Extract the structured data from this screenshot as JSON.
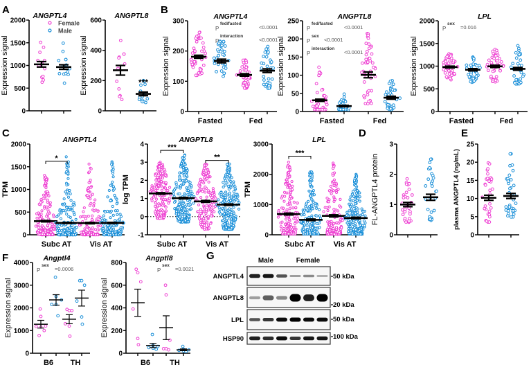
{
  "colors": {
    "female": "#ee3fd2",
    "male": "#1a8fd8",
    "axis": "#000000",
    "annotation": "#555555"
  },
  "legend": {
    "female": "Female",
    "male": "Male"
  },
  "panel_letters": [
    "A",
    "B",
    "C",
    "D",
    "E",
    "F",
    "G"
  ],
  "chart_data": [
    {
      "id": "A1",
      "panel": "A",
      "type": "scatter",
      "title": "ANGPTL4",
      "italic": true,
      "ylabel": "Expression signal",
      "ylim": [
        0,
        2000
      ],
      "yticks": [
        0,
        500,
        1000,
        1500,
        2000
      ],
      "groups": [
        {
          "sex": "female",
          "mean": 1025,
          "sem": 60,
          "points": [
            1510,
            1400,
            1290,
            1110,
            1110,
            1040,
            1000,
            940,
            930,
            740,
            760,
            630,
            680
          ]
        },
        {
          "sex": "male",
          "mean": 965,
          "sem": 50,
          "points": [
            1490,
            1310,
            1130,
            1130,
            1110,
            1010,
            980,
            930,
            860,
            820,
            810,
            800,
            820,
            610
          ]
        }
      ],
      "group_labels": [],
      "annotations": [],
      "significance": []
    },
    {
      "id": "A2",
      "panel": "A",
      "type": "scatter",
      "title": "ANGPTL8",
      "italic": true,
      "ylabel": "Expression signal",
      "ylim": [
        0,
        600
      ],
      "yticks": [
        0,
        200,
        400,
        600
      ],
      "groups": [
        {
          "sex": "female",
          "mean": 268,
          "sem": 32,
          "points": [
            465,
            375,
            375,
            355,
            350,
            310,
            280,
            195,
            145,
            100,
            95,
            75
          ]
        },
        {
          "sex": "male",
          "mean": 112,
          "sem": 12,
          "points": [
            200,
            195,
            175,
            170,
            130,
            110,
            105,
            95,
            90,
            80,
            75,
            70,
            60,
            60,
            55
          ],
          "star": "***"
        }
      ],
      "group_labels": [],
      "annotations": [],
      "significance": []
    },
    {
      "id": "B1",
      "panel": "B",
      "type": "scatter",
      "title": "ANGPTL4",
      "italic": true,
      "ylabel": "Expression signal",
      "ylim": [
        0,
        300
      ],
      "yticks": [
        0,
        100,
        200,
        300
      ],
      "groups": [
        {
          "sex": "female",
          "mean": 181,
          "sem": 5,
          "n": 45,
          "min": 112,
          "max": 262
        },
        {
          "sex": "male",
          "mean": 167,
          "sem": 6,
          "n": 35,
          "min": 90,
          "max": 232
        },
        {
          "sex": "female",
          "mean": 121,
          "sem": 4,
          "n": 45,
          "min": 77,
          "max": 170
        },
        {
          "sex": "male",
          "mean": 135,
          "sem": 6,
          "n": 35,
          "min": 77,
          "max": 215
        }
      ],
      "group_labels": [
        "Fasted",
        "Fed"
      ],
      "annotations": [
        {
          "p": "P",
          "sub": "fed/fasted",
          "value": "<0.0001"
        },
        {
          "p": "P",
          "sub": "interaction",
          "value": "<0.0001"
        }
      ],
      "significance": []
    },
    {
      "id": "B2",
      "panel": "B",
      "type": "scatter",
      "title": "ANGPTL8",
      "italic": true,
      "ylabel": "Expression signal",
      "ylim": [
        0,
        250
      ],
      "yticks": [
        0,
        50,
        100,
        150,
        200,
        250
      ],
      "groups": [
        {
          "sex": "female",
          "mean": 31,
          "sem": 3,
          "n": 45,
          "min": 5,
          "max": 122
        },
        {
          "sex": "male",
          "mean": 15,
          "sem": 2,
          "n": 35,
          "min": 5,
          "max": 48
        },
        {
          "sex": "female",
          "mean": 101,
          "sem": 8,
          "n": 45,
          "min": 20,
          "max": 215
        },
        {
          "sex": "male",
          "mean": 38,
          "sem": 4,
          "n": 35,
          "min": 5,
          "max": 85
        }
      ],
      "group_labels": [
        "Fasted",
        "Fed"
      ],
      "annotations": [
        {
          "p": "P",
          "sub": "fed/fasted",
          "value": "<0.0001"
        },
        {
          "p": "P",
          "sub": "sex",
          "value": "<0.0001"
        },
        {
          "p": "P",
          "sub": "interaction",
          "value": "<0.0001"
        }
      ],
      "significance": []
    },
    {
      "id": "B3",
      "panel": "B",
      "type": "scatter",
      "title": "LPL",
      "italic": true,
      "ylabel": "Expression signal",
      "ylim": [
        0,
        2000
      ],
      "yticks": [
        0,
        500,
        1000,
        1500,
        2000
      ],
      "groups": [
        {
          "sex": "female",
          "mean": 980,
          "sem": 20,
          "n": 45,
          "min": 700,
          "max": 1270
        },
        {
          "sex": "male",
          "mean": 920,
          "sem": 25,
          "n": 35,
          "min": 640,
          "max": 1200
        },
        {
          "sex": "female",
          "mean": 995,
          "sem": 25,
          "n": 45,
          "min": 650,
          "max": 1370
        },
        {
          "sex": "male",
          "mean": 940,
          "sem": 30,
          "n": 35,
          "min": 600,
          "max": 1450
        }
      ],
      "group_labels": [
        "Fasted",
        "Fed"
      ],
      "annotations": [
        {
          "p": "P",
          "sub": "sex",
          "value": "=0.016"
        }
      ],
      "significance": []
    },
    {
      "id": "C1",
      "panel": "C",
      "type": "scatter",
      "title": "ANGPTL4",
      "italic": true,
      "ylabel": "TPM",
      "ylim": [
        0,
        2000
      ],
      "yticks": [
        0,
        500,
        1000,
        1500,
        2000
      ],
      "groups": [
        {
          "sex": "female",
          "mean": 300,
          "sem": 15,
          "n": 180,
          "min": 0,
          "max": 1310
        },
        {
          "sex": "male",
          "mean": 262,
          "sem": 12,
          "n": 230,
          "min": 0,
          "max": 1720
        },
        {
          "sex": "female",
          "mean": 258,
          "sem": 15,
          "n": 150,
          "min": 0,
          "max": 1560
        },
        {
          "sex": "male",
          "mean": 262,
          "sem": 12,
          "n": 210,
          "min": 0,
          "max": 1610
        }
      ],
      "group_labels": [
        "Subc AT",
        "Vis AT"
      ],
      "annotations": [],
      "significance": [
        {
          "from": 0,
          "to": 1,
          "label": "*",
          "at": 1620
        }
      ]
    },
    {
      "id": "C2",
      "panel": "C",
      "type": "scatter",
      "title": "ANGPTL8",
      "italic": true,
      "ylabel": "log TPM",
      "ylim": [
        -1,
        4
      ],
      "yticks": [
        -1,
        0,
        1,
        2,
        3,
        4
      ],
      "zero_line": true,
      "groups": [
        {
          "sex": "female",
          "mean": 1.28,
          "sem": 0.04,
          "n": 180,
          "min": -0.1,
          "max": 3.0
        },
        {
          "sex": "male",
          "mean": 1.02,
          "sem": 0.04,
          "n": 230,
          "min": -0.3,
          "max": 3.4
        },
        {
          "sex": "female",
          "mean": 0.84,
          "sem": 0.05,
          "n": 150,
          "min": -0.7,
          "max": 2.9
        },
        {
          "sex": "male",
          "mean": 0.66,
          "sem": 0.04,
          "n": 210,
          "min": -0.7,
          "max": 2.9
        }
      ],
      "group_labels": [
        "Subc AT",
        "Vis AT"
      ],
      "annotations": [],
      "significance": [
        {
          "from": 0,
          "to": 1,
          "label": "***",
          "at": 3.65
        },
        {
          "from": 2,
          "to": 3,
          "label": "**",
          "at": 3.1
        }
      ]
    },
    {
      "id": "C3",
      "panel": "C",
      "type": "scatter",
      "title": "LPL",
      "italic": true,
      "ylabel": "TPM",
      "ylim": [
        0,
        3000
      ],
      "yticks": [
        0,
        1000,
        2000,
        3000
      ],
      "groups": [
        {
          "sex": "female",
          "mean": 685,
          "sem": 30,
          "n": 180,
          "min": 30,
          "max": 2400
        },
        {
          "sex": "male",
          "mean": 495,
          "sem": 25,
          "n": 230,
          "min": 30,
          "max": 2080
        },
        {
          "sex": "female",
          "mean": 625,
          "sem": 35,
          "n": 150,
          "min": 20,
          "max": 2370
        },
        {
          "sex": "male",
          "mean": 555,
          "sem": 25,
          "n": 210,
          "min": 20,
          "max": 2000
        }
      ],
      "group_labels": [
        "Subc AT",
        "Vis AT"
      ],
      "annotations": [],
      "significance": [
        {
          "from": 0,
          "to": 1,
          "label": "***",
          "at": 2600
        }
      ]
    },
    {
      "id": "D",
      "panel": "D",
      "type": "scatter",
      "title": "",
      "ylabel": "FL-ANGPTL4 protein",
      "ylim": [
        0,
        3
      ],
      "yticks": [
        0,
        1,
        2,
        3
      ],
      "groups": [
        {
          "sex": "female",
          "mean": 1.0,
          "sem": 0.07,
          "n": 32,
          "min": 0.38,
          "max": 1.85
        },
        {
          "sex": "male",
          "mean": 1.24,
          "sem": 0.1,
          "n": 30,
          "min": 0.45,
          "max": 2.5
        }
      ],
      "group_labels": [],
      "annotations": [],
      "significance": []
    },
    {
      "id": "E",
      "panel": "E",
      "type": "scatter",
      "title": "",
      "ylabel": "plasma ANGPTL4 (ng/mL)",
      "ylim": [
        0,
        25
      ],
      "yticks": [
        0,
        5,
        10,
        15,
        20,
        25
      ],
      "groups": [
        {
          "sex": "female",
          "mean": 10.2,
          "sem": 0.7,
          "n": 32,
          "min": 3.2,
          "max": 19.8
        },
        {
          "sex": "male",
          "mean": 10.7,
          "sem": 0.7,
          "n": 34,
          "min": 4.7,
          "max": 22.3
        }
      ],
      "group_labels": [],
      "annotations": [],
      "significance": []
    },
    {
      "id": "F1",
      "panel": "F",
      "type": "scatter",
      "title": "Angptl4",
      "italic": true,
      "ylabel": "Expression signal",
      "ylim": [
        0,
        4000
      ],
      "yticks": [
        0,
        1000,
        2000,
        3000,
        4000
      ],
      "thin_bars": true,
      "groups": [
        {
          "sex": "female",
          "mean": 1280,
          "sem": 170,
          "points": [
            1950,
            1620,
            1200,
            1180,
            1150,
            1000,
            780
          ]
        },
        {
          "sex": "male",
          "mean": 2350,
          "sem": 230,
          "points": [
            3350,
            2500,
            2350,
            2150,
            2150,
            1650
          ]
        },
        {
          "sex": "female",
          "mean": 1500,
          "sem": 200,
          "points": [
            1930,
            1880,
            1880,
            1300,
            1200,
            750
          ]
        },
        {
          "sex": "male",
          "mean": 2430,
          "sem": 350,
          "points": [
            3200,
            3200,
            3000,
            2300,
            1600,
            1280
          ]
        }
      ],
      "group_labels": [
        "B6",
        "TH"
      ],
      "annotations": [
        {
          "p": "P",
          "sub": "sex",
          "value": "=0.0006"
        }
      ],
      "significance": []
    },
    {
      "id": "F2",
      "panel": "F",
      "type": "scatter",
      "title": "Angptl8",
      "italic": true,
      "ylabel": "Expression signal",
      "ylim": [
        0,
        800
      ],
      "yticks": [
        0,
        200,
        400,
        600,
        800
      ],
      "thin_bars": true,
      "groups": [
        {
          "sex": "female",
          "mean": 445,
          "sem": 120,
          "points": [
            740,
            710,
            630,
            390,
            130,
            75
          ]
        },
        {
          "sex": "male",
          "mean": 68,
          "sem": 18,
          "points": [
            165,
            70,
            60,
            50,
            45,
            35
          ]
        },
        {
          "sex": "female",
          "mean": 225,
          "sem": 105,
          "points": [
            600,
            515,
            115,
            40,
            40,
            30
          ]
        },
        {
          "sex": "male",
          "mean": 30,
          "sem": 8,
          "points": [
            60,
            35,
            30,
            25,
            20,
            15
          ]
        }
      ],
      "group_labels": [
        "B6",
        "TH"
      ],
      "annotations": [
        {
          "p": "P",
          "sub": "sex",
          "value": "=0.0021"
        }
      ],
      "significance": []
    }
  ],
  "blot": {
    "groups": [
      "Male",
      "Female"
    ],
    "rows": [
      {
        "label": "ANGPTL4",
        "marker": "50 kDa",
        "bands": [
          0.85,
          0.9,
          0.6,
          0.25,
          0.35,
          0.2
        ]
      },
      {
        "label": "ANGPTL8",
        "marker": "20 kDa",
        "bands": [
          0.25,
          0.55,
          0.35,
          1.0,
          0.85,
          1.0
        ]
      },
      {
        "label": "LPL",
        "marker": "50 kDa",
        "bands": [
          0.6,
          0.75,
          0.95,
          1.0,
          0.95,
          0.95
        ]
      },
      {
        "label": "HSP90",
        "marker": "100 kDa",
        "bands": [
          0.85,
          0.8,
          0.95,
          0.75,
          0.9,
          0.9
        ]
      }
    ]
  }
}
